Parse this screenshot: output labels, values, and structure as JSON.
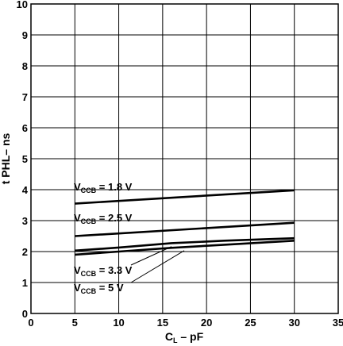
{
  "chart_data": {
    "type": "line",
    "xlabel_main": "C",
    "xlabel_sub": "L",
    "xlabel_rest": " – pF",
    "ylabel": "t PHL– ns",
    "xlim": [
      0,
      35
    ],
    "ylim": [
      0,
      10
    ],
    "xticks": [
      "0",
      "5",
      "10",
      "15",
      "20",
      "25",
      "30",
      "35"
    ],
    "yticks": [
      "0",
      "1",
      "2",
      "3",
      "4",
      "5",
      "6",
      "7",
      "8",
      "9",
      "10"
    ],
    "grid": true,
    "series": [
      {
        "label_main": "V",
        "label_sub": "CCB",
        "label_rest": " = 1.8 V",
        "x": [
          5,
          30
        ],
        "y": [
          3.55,
          3.98
        ]
      },
      {
        "label_main": "V",
        "label_sub": "CCB",
        "label_rest": " = 2.5 V",
        "x": [
          5,
          30
        ],
        "y": [
          2.5,
          2.93
        ]
      },
      {
        "label_main": "V",
        "label_sub": "CCB",
        "label_rest": " = 3.3 V",
        "x": [
          5,
          10,
          16,
          22,
          30
        ],
        "y": [
          2.03,
          2.13,
          2.27,
          2.35,
          2.43
        ]
      },
      {
        "label_main": "V",
        "label_sub": "CCB",
        "label_rest": " = 5 V",
        "x": [
          5,
          10,
          16,
          22,
          30
        ],
        "y": [
          1.9,
          2.0,
          2.12,
          2.22,
          2.35
        ]
      }
    ],
    "colors": {
      "line": "#000000",
      "grid": "#000000"
    }
  }
}
